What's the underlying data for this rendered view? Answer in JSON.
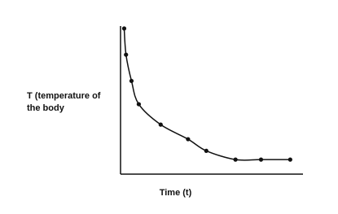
{
  "chart_data": {
    "type": "scatter",
    "x_label": "Time (t)",
    "y_label": "T (temperature of the body",
    "x": [
      2,
      3,
      6,
      10,
      22,
      37,
      47,
      63,
      77,
      93
    ],
    "values": [
      100,
      82,
      64,
      48,
      34,
      24,
      16,
      10,
      10,
      10
    ],
    "color": "#111111",
    "xlim": [
      0,
      100
    ],
    "ylim": [
      0,
      100
    ],
    "grid": false
  }
}
